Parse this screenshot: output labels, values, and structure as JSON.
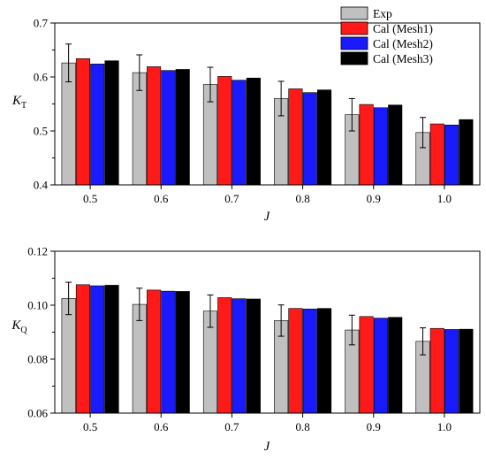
{
  "chart_data": [
    {
      "type": "bar",
      "xlabel": "J",
      "ylabel": {
        "main": "K",
        "sub": "T"
      },
      "categories": [
        "0.5",
        "0.6",
        "0.7",
        "0.8",
        "0.9",
        "1.0"
      ],
      "ylim": [
        0.4,
        0.7
      ],
      "yticks": [
        "0.4",
        "0.5",
        "0.6",
        "0.7"
      ],
      "series": [
        {
          "name": "Exp",
          "color": "#c0c0c0",
          "values": [
            0.626,
            0.608,
            0.586,
            0.56,
            0.53,
            0.497
          ],
          "error": [
            0.035,
            0.033,
            0.032,
            0.032,
            0.03,
            0.028
          ]
        },
        {
          "name": "Cal (Mesh1)",
          "color": "#ff1a1a",
          "values": [
            0.634,
            0.619,
            0.601,
            0.578,
            0.549,
            0.513
          ]
        },
        {
          "name": "Cal (Mesh2)",
          "color": "#1a1aff",
          "values": [
            0.624,
            0.612,
            0.594,
            0.571,
            0.543,
            0.511
          ]
        },
        {
          "name": "Cal (Mesh3)",
          "color": "#000000",
          "values": [
            0.63,
            0.614,
            0.598,
            0.576,
            0.548,
            0.521
          ]
        }
      ],
      "legend": "top-right"
    },
    {
      "type": "bar",
      "xlabel": "J",
      "ylabel": {
        "main": "K",
        "sub": "Q"
      },
      "categories": [
        "0.5",
        "0.6",
        "0.7",
        "0.8",
        "0.9",
        "1.0"
      ],
      "ylim": [
        0.06,
        0.12
      ],
      "yticks": [
        "0.06",
        "0.08",
        "0.10",
        "0.12"
      ],
      "series": [
        {
          "name": "Exp",
          "color": "#c0c0c0",
          "values": [
            0.1025,
            0.1003,
            0.0978,
            0.0943,
            0.0908,
            0.0866
          ],
          "error": [
            0.006,
            0.006,
            0.006,
            0.0058,
            0.0055,
            0.005
          ]
        },
        {
          "name": "Cal (Mesh1)",
          "color": "#ff1a1a",
          "values": [
            0.1076,
            0.1056,
            0.1028,
            0.0988,
            0.0958,
            0.0914
          ]
        },
        {
          "name": "Cal (Mesh2)",
          "color": "#1a1aff",
          "values": [
            0.1072,
            0.1052,
            0.1024,
            0.0986,
            0.0952,
            0.091
          ]
        },
        {
          "name": "Cal (Mesh3)",
          "color": "#000000",
          "values": [
            0.1074,
            0.1051,
            0.1023,
            0.0988,
            0.0955,
            0.0911
          ]
        }
      ]
    }
  ]
}
